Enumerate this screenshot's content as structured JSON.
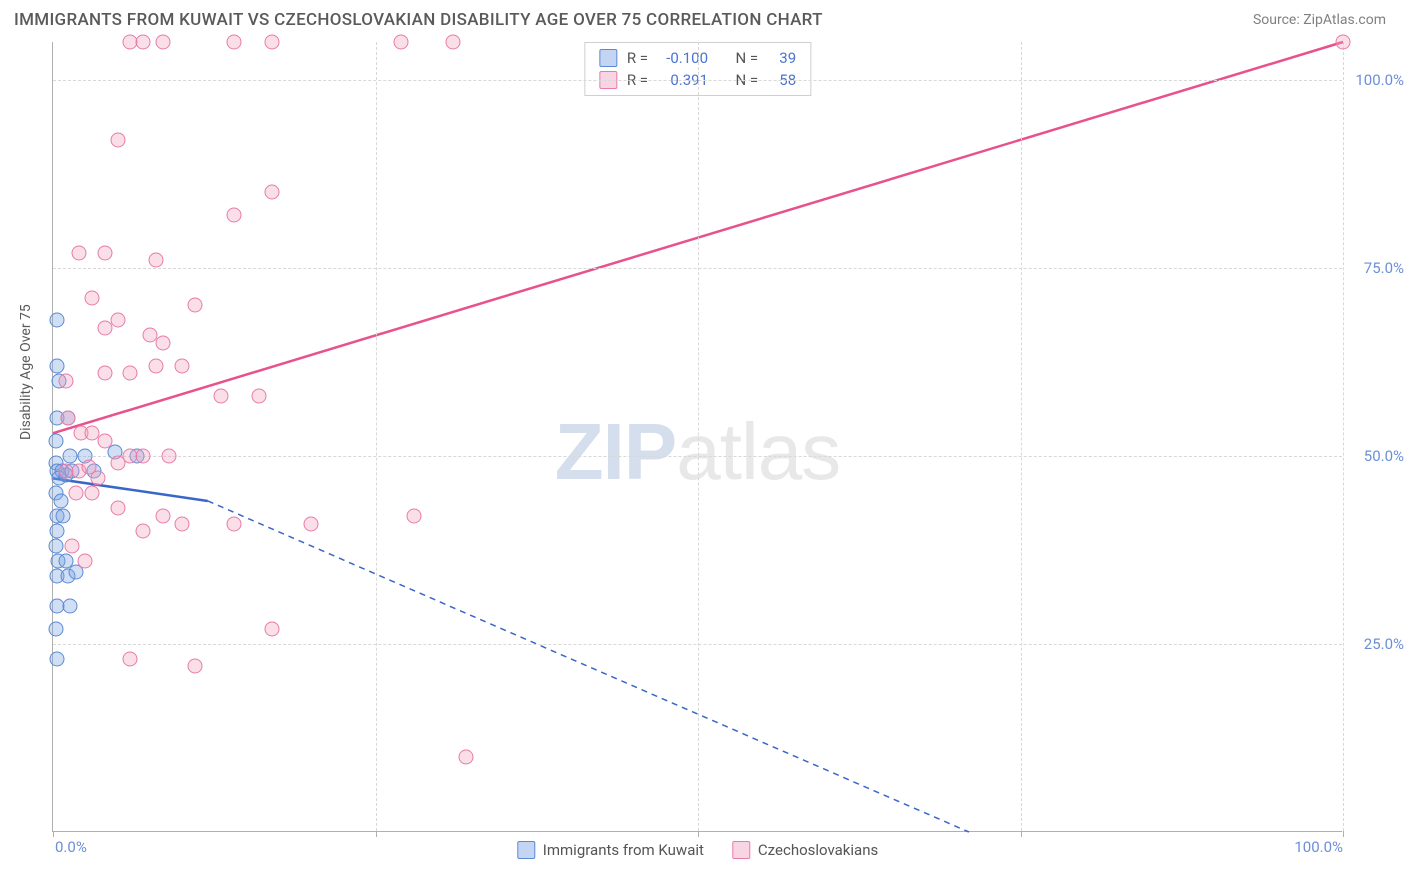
{
  "header": {
    "title": "IMMIGRANTS FROM KUWAIT VS CZECHOSLOVAKIAN DISABILITY AGE OVER 75 CORRELATION CHART",
    "source_prefix": "Source: ",
    "source_link": "ZipAtlas.com"
  },
  "chart": {
    "type": "scatter",
    "ylabel": "Disability Age Over 75",
    "xlim": [
      0,
      100
    ],
    "ylim": [
      0,
      105
    ],
    "xtick_positions": [
      0,
      25,
      50,
      75,
      100
    ],
    "ytick_positions": [
      25,
      50,
      75,
      100
    ],
    "xtick_labels": {
      "0": "0.0%",
      "100": "100.0%"
    },
    "ytick_labels": {
      "25": "25.0%",
      "50": "50.0%",
      "75": "75.0%",
      "100": "100.0%"
    },
    "grid_color": "#d8d8d8",
    "axis_color": "#b0b0b0",
    "background_color": "#ffffff",
    "watermark": {
      "bold": "ZIP",
      "rest": "atlas"
    },
    "series": [
      {
        "key": "kuwait",
        "label": "Immigrants from Kuwait",
        "color_fill": "rgba(122,162,226,0.35)",
        "color_stroke": "#5a8ad4",
        "line_color": "#3a66c8",
        "line_solid": [
          [
            0,
            47
          ],
          [
            12,
            44
          ]
        ],
        "line_dash": [
          [
            12,
            44
          ],
          [
            71,
            0
          ]
        ],
        "R": "-0.100",
        "N": "39",
        "points": [
          [
            0.3,
            68
          ],
          [
            0.3,
            62
          ],
          [
            0.5,
            60
          ],
          [
            0.3,
            55
          ],
          [
            0.2,
            52
          ],
          [
            1.2,
            55
          ],
          [
            1.3,
            50
          ],
          [
            0.2,
            49
          ],
          [
            0.3,
            48
          ],
          [
            0.7,
            48
          ],
          [
            0.5,
            47
          ],
          [
            1.0,
            47.5
          ],
          [
            1.5,
            48
          ],
          [
            0.2,
            45
          ],
          [
            0.6,
            44
          ],
          [
            0.3,
            42
          ],
          [
            0.8,
            42
          ],
          [
            0.3,
            40
          ],
          [
            0.2,
            38
          ],
          [
            2.5,
            50
          ],
          [
            3.2,
            48
          ],
          [
            4.8,
            50.5
          ],
          [
            6.5,
            50
          ],
          [
            0.4,
            36
          ],
          [
            1.0,
            36
          ],
          [
            0.3,
            34
          ],
          [
            1.2,
            34
          ],
          [
            1.8,
            34.5
          ],
          [
            0.3,
            30
          ],
          [
            1.3,
            30
          ],
          [
            0.2,
            27
          ],
          [
            0.3,
            23
          ]
        ]
      },
      {
        "key": "czech",
        "label": "Czechoslakians",
        "label_fixed": "Czechoslovakians",
        "color_fill": "rgba(242,160,190,0.35)",
        "color_stroke": "#e87ba8",
        "line_color": "#e8528c",
        "line_solid": [
          [
            0,
            53
          ],
          [
            100,
            105
          ]
        ],
        "R": "0.391",
        "N": "58",
        "points": [
          [
            6,
            105
          ],
          [
            7,
            105
          ],
          [
            8.5,
            105
          ],
          [
            14,
            105
          ],
          [
            17,
            105
          ],
          [
            27,
            105
          ],
          [
            31,
            105
          ],
          [
            100,
            105
          ],
          [
            5,
            92
          ],
          [
            17,
            85
          ],
          [
            14,
            82
          ],
          [
            2,
            77
          ],
          [
            4,
            77
          ],
          [
            8,
            76
          ],
          [
            3,
            71
          ],
          [
            4,
            67
          ],
          [
            11,
            70
          ],
          [
            5,
            68
          ],
          [
            7.5,
            66
          ],
          [
            8.5,
            65
          ],
          [
            1,
            60
          ],
          [
            4,
            61
          ],
          [
            6,
            61
          ],
          [
            8,
            62
          ],
          [
            10,
            62
          ],
          [
            13,
            58
          ],
          [
            16,
            58
          ],
          [
            1.2,
            55
          ],
          [
            2.2,
            53
          ],
          [
            3,
            53
          ],
          [
            4,
            52
          ],
          [
            5,
            49
          ],
          [
            6,
            50
          ],
          [
            7,
            50
          ],
          [
            9,
            50
          ],
          [
            1.0,
            48
          ],
          [
            2,
            48
          ],
          [
            2.8,
            48.5
          ],
          [
            3.5,
            47
          ],
          [
            1.8,
            45
          ],
          [
            3,
            45
          ],
          [
            5,
            43
          ],
          [
            8.5,
            42
          ],
          [
            7,
            40
          ],
          [
            10,
            41
          ],
          [
            14,
            41
          ],
          [
            20,
            41
          ],
          [
            1.5,
            38
          ],
          [
            2.5,
            36
          ],
          [
            28,
            42
          ],
          [
            6,
            23
          ],
          [
            11,
            22
          ],
          [
            17,
            27
          ],
          [
            32,
            10
          ]
        ]
      }
    ],
    "legend_top_format": [
      "R =",
      "N ="
    ]
  }
}
